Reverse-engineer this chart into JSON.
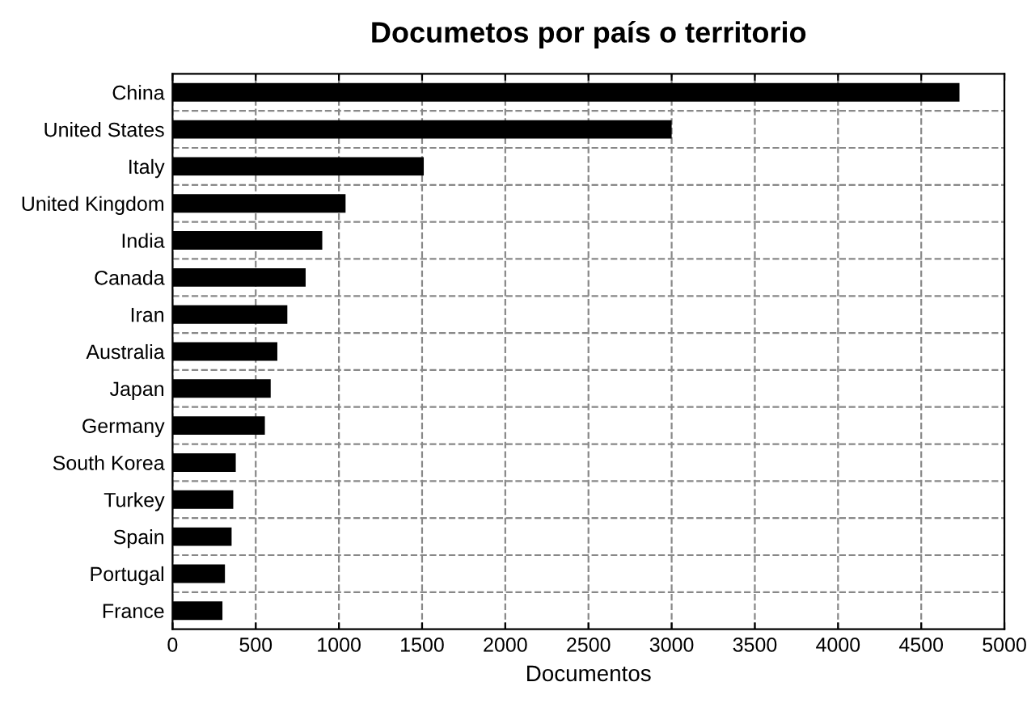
{
  "chart_data": {
    "type": "bar",
    "orientation": "horizontal",
    "title": "Documetos por país o territorio",
    "xlabel": "Documentos",
    "categories": [
      "China",
      "United States",
      "Italy",
      "United Kingdom",
      "India",
      "Canada",
      "Iran",
      "Australia",
      "Japan",
      "Germany",
      "South Korea",
      "Turkey",
      "Spain",
      "Portugal",
      "France"
    ],
    "values": [
      4730,
      3000,
      1510,
      1040,
      900,
      800,
      690,
      630,
      590,
      555,
      380,
      365,
      355,
      315,
      300
    ],
    "color": "#000000",
    "xlim": [
      0,
      5000
    ],
    "xticks": [
      0,
      500,
      1000,
      1500,
      2000,
      2500,
      3000,
      3500,
      4000,
      4500,
      5000
    ],
    "grid": true,
    "line_style": "dashed"
  }
}
